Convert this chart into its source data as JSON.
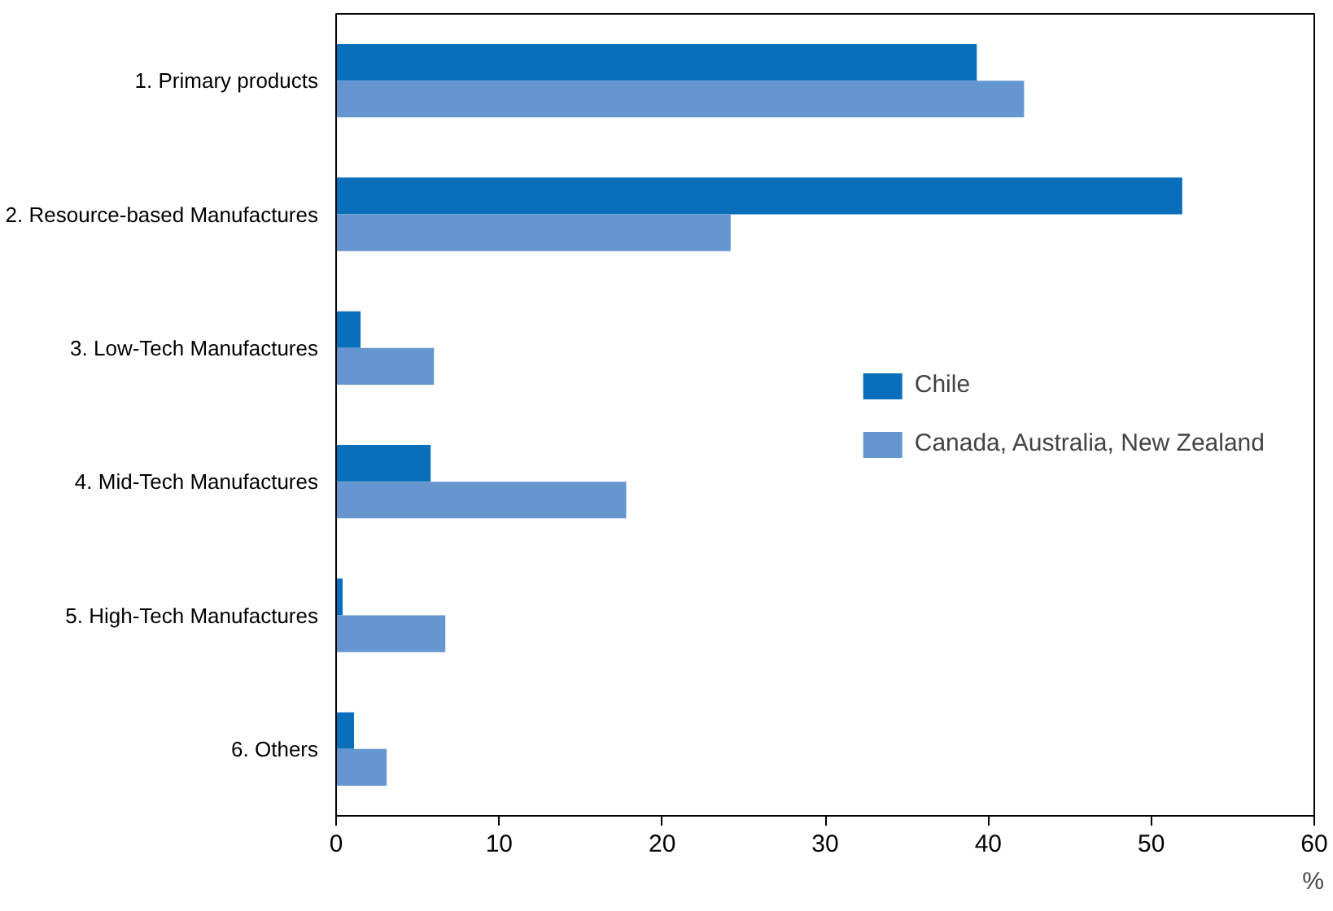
{
  "chart_data": {
    "type": "bar",
    "orientation": "horizontal",
    "xlabel": "%",
    "categories": [
      "1. Primary products",
      "2. Resource-based Manufactures",
      "3. Low-Tech Manufactures",
      "4. Mid-Tech Manufactures",
      "5. High-Tech Manufactures",
      "6. Others"
    ],
    "series": [
      {
        "name": "Chile",
        "color": "#0a6fba",
        "values": [
          39.3,
          51.9,
          1.5,
          5.8,
          0.4,
          1.1
        ]
      },
      {
        "name": "Canada, Australia, New Zealand",
        "color": "#6596d0",
        "values": [
          42.2,
          24.2,
          6.0,
          17.8,
          6.7,
          3.1
        ]
      }
    ],
    "xlim": [
      0,
      60
    ],
    "xticks": [
      0,
      10,
      20,
      30,
      40,
      50,
      60
    ],
    "legend": "right",
    "grid": false
  }
}
